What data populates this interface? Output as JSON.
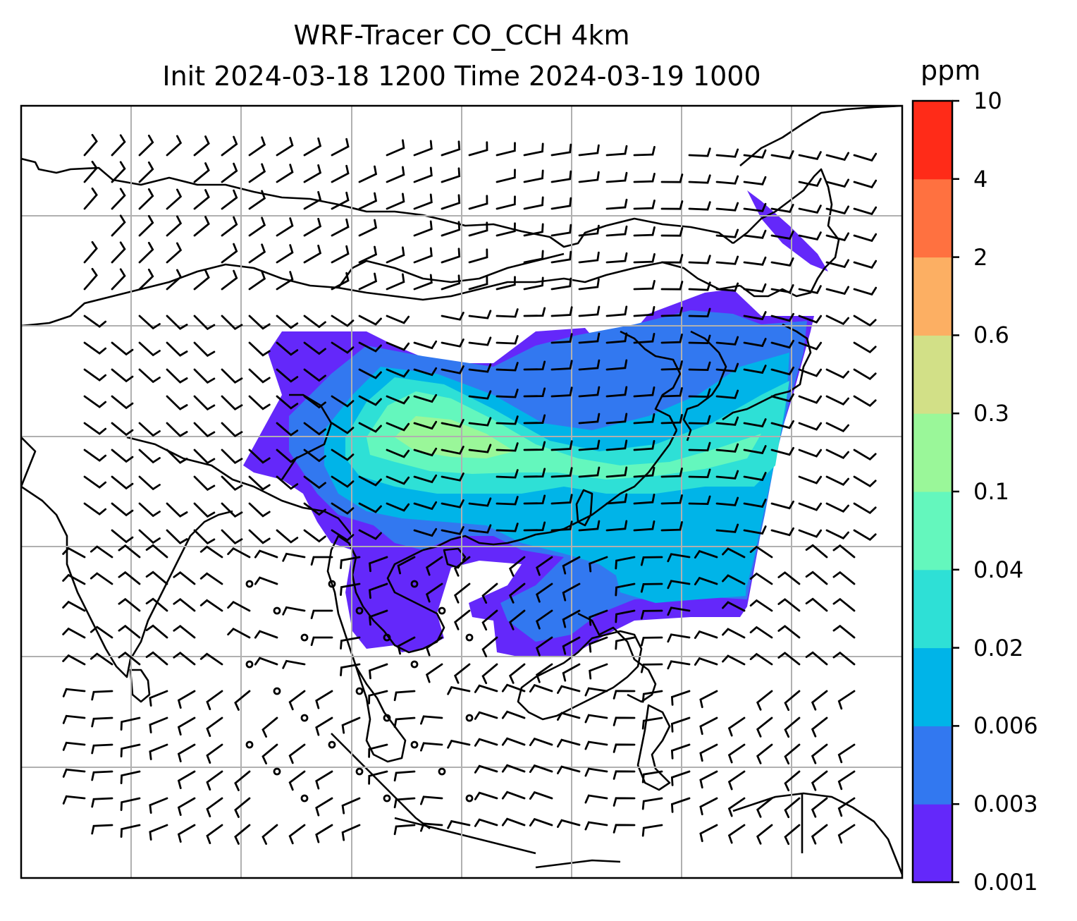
{
  "title_line1": "WRF-Tracer CO_CCH 4km",
  "title_line2": "Init 2024-03-18 1200 Time 2024-03-19 1000",
  "colorbar": {
    "unit": "ppm",
    "levels": [
      "0.001",
      "0.003",
      "0.006",
      "0.02",
      "0.04",
      "0.1",
      "0.3",
      "0.6",
      "2",
      "4",
      "10"
    ],
    "colors": [
      "#6428fa",
      "#3278f0",
      "#00b4e8",
      "#2ee0d6",
      "#64f7bd",
      "#9af799",
      "#d2e087",
      "#fcaf63",
      "#ff7140",
      "#ff2b18"
    ]
  },
  "map": {
    "gridline_color": "#b0b0b0",
    "coastline_color": "#000000",
    "wind_symbol": "wind-barbs"
  }
}
